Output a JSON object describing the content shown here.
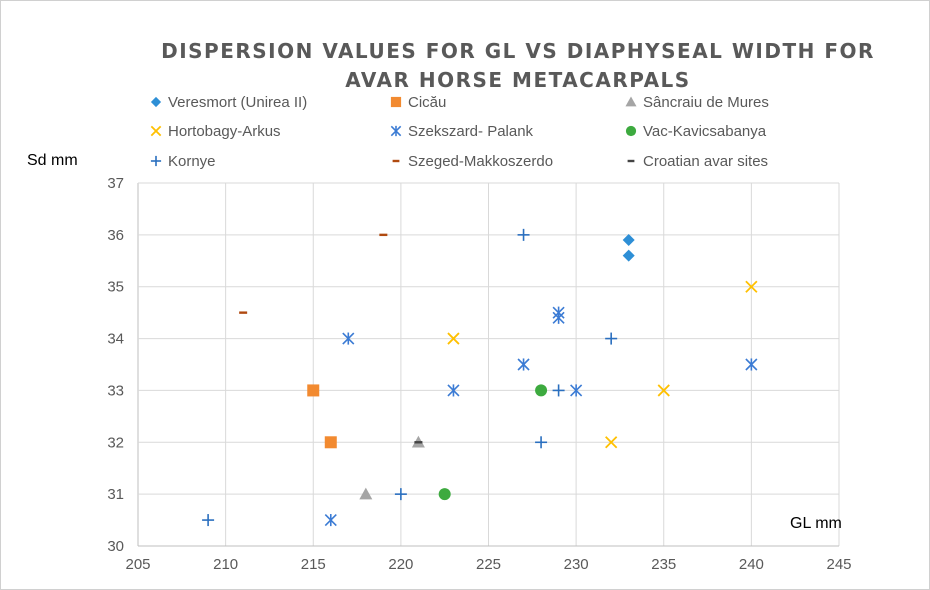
{
  "chart_data": {
    "type": "scatter",
    "title_lines": [
      "DISPERSION VALUES FOR GL VS DIAPHYSEAL WIDTH FOR",
      "AVAR HORSE METACARPALS"
    ],
    "xlabel": "GL mm",
    "ylabel": "Sd mm",
    "xlim": [
      205,
      245
    ],
    "ylim": [
      30,
      37
    ],
    "x_ticks": [
      205,
      210,
      215,
      220,
      225,
      230,
      235,
      240,
      245
    ],
    "y_ticks": [
      30,
      31,
      32,
      33,
      34,
      35,
      36,
      37
    ],
    "grid": "vertical and horizontal major gridlines",
    "legend_position": "top",
    "series": [
      {
        "name": "Veresmort (Unirea II)",
        "marker": "diamond",
        "color": "#2E8FD6",
        "points": [
          [
            233,
            35.9
          ],
          [
            233,
            35.6
          ]
        ]
      },
      {
        "name": "Cicău",
        "marker": "square",
        "color": "#F28A30",
        "points": [
          [
            215,
            33.0
          ],
          [
            216,
            32.0
          ]
        ]
      },
      {
        "name": "Sâncraiu de Mures",
        "marker": "triangle",
        "color": "#A5A5A5",
        "points": [
          [
            218,
            31.0
          ],
          [
            221,
            32.0
          ]
        ]
      },
      {
        "name": "Hortobagy-Arkus",
        "marker": "x",
        "color": "#FFC000",
        "points": [
          [
            223,
            34.0
          ],
          [
            232,
            32.0
          ],
          [
            235,
            33.0
          ],
          [
            240,
            35.0
          ]
        ]
      },
      {
        "name": "Szekszard- Palank",
        "marker": "asterisk",
        "color": "#3B7BD4",
        "points": [
          [
            216,
            30.5
          ],
          [
            217,
            34.0
          ],
          [
            223,
            33.0
          ],
          [
            227,
            33.5
          ],
          [
            229,
            34.5
          ],
          [
            229,
            34.4
          ],
          [
            230,
            33.0
          ],
          [
            240,
            33.5
          ]
        ]
      },
      {
        "name": "Vac-Kavicsabanya",
        "marker": "circle",
        "color": "#3DAA3F",
        "points": [
          [
            222.5,
            31.0
          ],
          [
            228,
            33.0
          ]
        ]
      },
      {
        "name": "Kornye",
        "marker": "plus",
        "color": "#2A6FBF",
        "points": [
          [
            209,
            30.5
          ],
          [
            220,
            31.0
          ],
          [
            227,
            36.0
          ],
          [
            228,
            32.0
          ],
          [
            229,
            33.0
          ],
          [
            232,
            34.0
          ]
        ]
      },
      {
        "name": "Szeged-Makkoszerdo",
        "marker": "dash",
        "color": "#B04A10",
        "points": [
          [
            211,
            34.5
          ],
          [
            219,
            36.0
          ]
        ]
      },
      {
        "name": "Croatian avar sites",
        "marker": "dash",
        "color": "#444444",
        "points": [
          [
            221,
            32.0
          ]
        ]
      }
    ]
  }
}
